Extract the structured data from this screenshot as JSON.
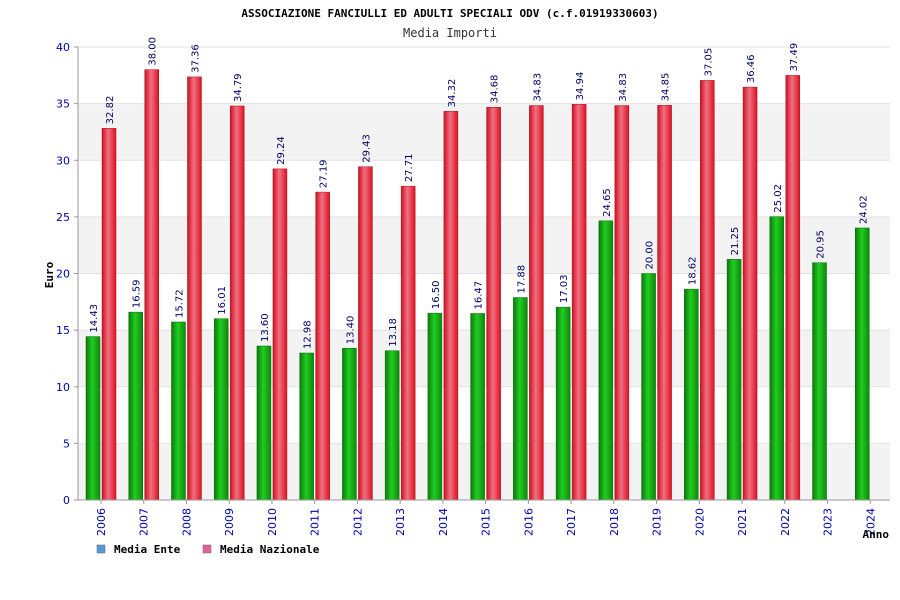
{
  "chart_data": {
    "type": "bar",
    "title": "ASSOCIAZIONE FANCIULLI ED ADULTI SPECIALI ODV (c.f.01919330603)",
    "subtitle": "Media Importi",
    "xlabel": "Anno",
    "ylabel": "Euro",
    "ylim": [
      0,
      40
    ],
    "yticks": [
      0,
      5,
      10,
      15,
      20,
      25,
      30,
      35,
      40
    ],
    "grid": "horizontal-bands",
    "legend": "bottom-left",
    "categories": [
      "2006",
      "2007",
      "2008",
      "2009",
      "2010",
      "2011",
      "2012",
      "2013",
      "2014",
      "2015",
      "2016",
      "2017",
      "2018",
      "2019",
      "2020",
      "2021",
      "2022",
      "2023",
      "2024"
    ],
    "series": [
      {
        "name": "Media Ente",
        "legend_color": "#5599dd",
        "bar_color": "#22aa22",
        "values": [
          14.43,
          16.59,
          15.72,
          16.01,
          13.6,
          12.98,
          13.4,
          13.18,
          16.5,
          16.47,
          17.88,
          17.03,
          24.65,
          20.0,
          18.62,
          21.25,
          25.02,
          20.95,
          24.02
        ],
        "labels": [
          "14.43",
          "16.59",
          "15.72",
          "16.01",
          "13.60",
          "12.98",
          "13.40",
          "13.18",
          "16.50",
          "16.47",
          "17.88",
          "17.03",
          "24.65",
          "20.00",
          "18.62",
          "21.25",
          "25.02",
          "20.95",
          "24.02"
        ]
      },
      {
        "name": "Media Nazionale",
        "legend_color": "#dd6699",
        "bar_color": "#ee2233",
        "values": [
          32.82,
          38.0,
          37.36,
          34.79,
          29.24,
          27.19,
          29.43,
          27.71,
          34.32,
          34.68,
          34.83,
          34.94,
          34.83,
          34.85,
          37.05,
          36.46,
          37.49,
          null,
          null
        ],
        "labels": [
          "32.82",
          "38.00",
          "37.36",
          "34.79",
          "29.24",
          "27.19",
          "29.43",
          "27.71",
          "34.32",
          "34.68",
          "34.83",
          "34.94",
          "34.83",
          "34.85",
          "37.05",
          "36.46",
          "37.49",
          "",
          ""
        ]
      }
    ]
  }
}
